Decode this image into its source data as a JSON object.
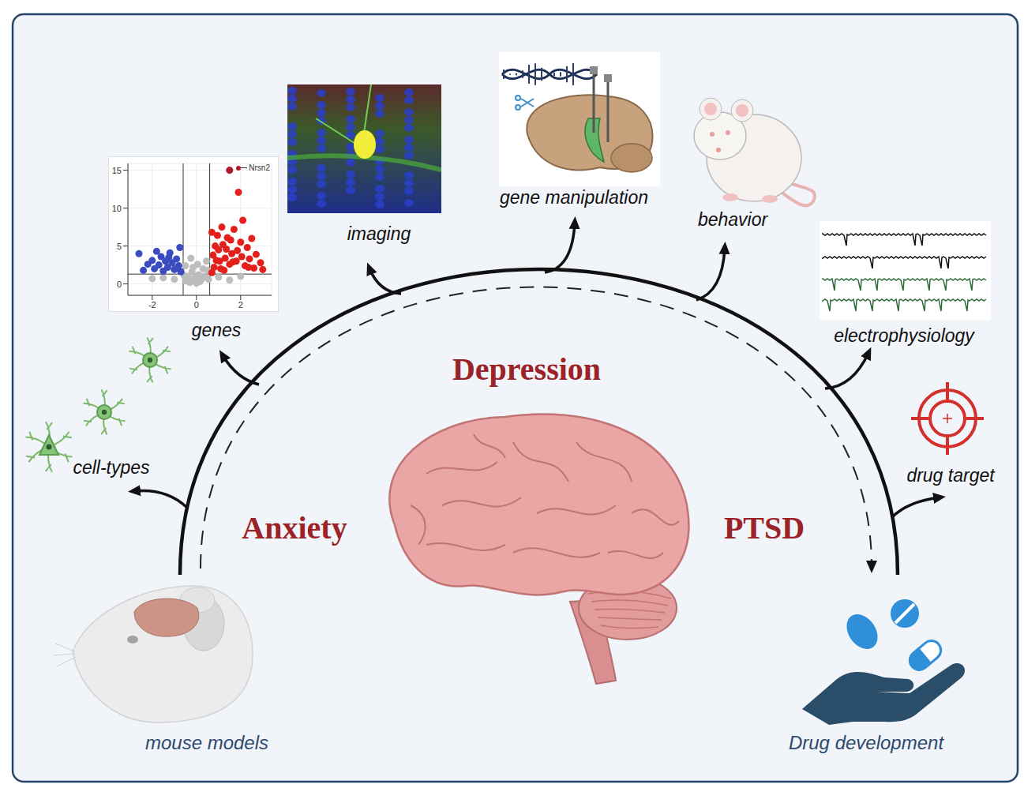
{
  "diagram": {
    "center": "Depression",
    "left": "Anxiety",
    "right": "PTSD",
    "start": "mouse models",
    "end": "Drug development",
    "steps": [
      "cell-types",
      "genes",
      "imaging",
      "gene manipulation",
      "behavior",
      "electrophysiology",
      "drug target"
    ]
  },
  "chart_data": {
    "type": "scatter",
    "xlim": [
      -3.1,
      3.4
    ],
    "ylim": [
      -1.5,
      15.9
    ],
    "xticks": [
      -2,
      0,
      2
    ],
    "yticks": [
      0,
      5,
      10,
      15
    ],
    "grid": true,
    "thresholds": {
      "x": [
        -0.6,
        0.6
      ],
      "y": 1.3
    },
    "series": [
      {
        "color": "#bdbdbd",
        "values": [
          [
            -0.5,
            0.4
          ],
          [
            -0.4,
            1.0
          ],
          [
            -0.3,
            0.2
          ],
          [
            -0.2,
            1.6
          ],
          [
            -0.1,
            0.7
          ],
          [
            0,
            0.1
          ],
          [
            0.1,
            1.2
          ],
          [
            0.2,
            0.5
          ],
          [
            0.3,
            2.0
          ],
          [
            0.4,
            0.9
          ],
          [
            0.5,
            1.8
          ],
          [
            -0.5,
            2.4
          ],
          [
            0.45,
            3.0
          ],
          [
            -0.35,
            0.8
          ],
          [
            0.15,
            0.3
          ],
          [
            -0.15,
            2.2
          ],
          [
            0.25,
            1.0
          ],
          [
            0.55,
            0.6
          ],
          [
            -0.55,
            1.1
          ],
          [
            -1.0,
            0.6
          ],
          [
            -1.5,
            0.8
          ],
          [
            1.0,
            0.9
          ],
          [
            1.5,
            0.5
          ],
          [
            2.0,
            1.0
          ],
          [
            -2.0,
            0.7
          ],
          [
            0.05,
            2.6
          ],
          [
            -0.25,
            3.4
          ]
        ]
      },
      {
        "color": "#3b4cc0",
        "values": [
          [
            -0.7,
            1.6
          ],
          [
            -0.8,
            2.4
          ],
          [
            -0.9,
            3.3
          ],
          [
            -1.0,
            1.9
          ],
          [
            -1.1,
            2.8
          ],
          [
            -1.2,
            4.1
          ],
          [
            -1.3,
            2.2
          ],
          [
            -1.4,
            3.0
          ],
          [
            -1.5,
            1.7
          ],
          [
            -1.6,
            3.6
          ],
          [
            -1.7,
            2.5
          ],
          [
            -1.8,
            4.3
          ],
          [
            -1.9,
            2.0
          ],
          [
            -2.0,
            3.1
          ],
          [
            -2.2,
            2.6
          ],
          [
            -2.4,
            1.8
          ],
          [
            -2.6,
            4.0
          ],
          [
            -0.75,
            4.8
          ],
          [
            -0.95,
            2.0
          ],
          [
            -1.25,
            3.5
          ]
        ]
      },
      {
        "color": "#e3201b",
        "values": [
          [
            0.7,
            1.5
          ],
          [
            0.8,
            2.2
          ],
          [
            0.9,
            3.1
          ],
          [
            1.0,
            4.5
          ],
          [
            1.1,
            2.0
          ],
          [
            1.2,
            5.2
          ],
          [
            1.3,
            3.4
          ],
          [
            1.4,
            6.1
          ],
          [
            1.5,
            2.6
          ],
          [
            1.6,
            4.0
          ],
          [
            1.7,
            7.2
          ],
          [
            1.8,
            3.0
          ],
          [
            1.9,
            12.1
          ],
          [
            2.0,
            5.5
          ],
          [
            2.1,
            8.4
          ],
          [
            2.2,
            2.4
          ],
          [
            2.3,
            4.8
          ],
          [
            2.4,
            3.3
          ],
          [
            2.5,
            6.0
          ],
          [
            2.6,
            2.1
          ],
          [
            2.7,
            3.9
          ],
          [
            2.9,
            2.8
          ],
          [
            3.0,
            1.9
          ],
          [
            0.75,
            3.8
          ],
          [
            0.85,
            5.0
          ],
          [
            0.95,
            6.4
          ],
          [
            1.05,
            3.0
          ],
          [
            1.25,
            1.8
          ],
          [
            1.35,
            4.6
          ],
          [
            1.55,
            5.8
          ],
          [
            1.65,
            2.9
          ],
          [
            1.85,
            4.4
          ],
          [
            2.05,
            3.6
          ],
          [
            2.35,
            2.2
          ],
          [
            0.7,
            6.8
          ],
          [
            1.15,
            7.5
          ]
        ]
      }
    ],
    "highlight": {
      "name": "Nrsn2",
      "color": "#b2182b",
      "x": 1.5,
      "y": 15
    }
  }
}
